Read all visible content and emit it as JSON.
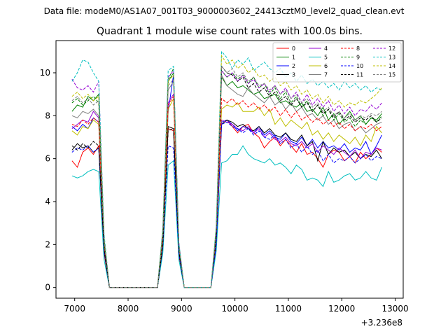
{
  "chart_data": {
    "type": "line",
    "suptitle": "Data file: modeM0/AS1A07_001T03_9000003602_24413cztM0_level2_quad_clean.evt",
    "title": "Quadrant 1 module wise count rates with 100.0s bins.",
    "xlabel": "",
    "ylabel": "",
    "x_offset_label": "+3.236e8",
    "xlim": [
      6650,
      13150
    ],
    "ylim": [
      -0.5,
      11.5
    ],
    "xticks": [
      7000,
      8000,
      9000,
      10000,
      11000,
      12000,
      13000
    ],
    "xtick_labels": [
      "7000",
      "8000",
      "9000",
      "10000",
      "11000",
      "12000",
      "13000"
    ],
    "yticks": [
      0,
      2,
      4,
      6,
      8,
      10
    ],
    "ytick_labels": [
      "0",
      "2",
      "4",
      "6",
      "8",
      "10"
    ],
    "legend_position": "top-right",
    "x": [
      6950,
      7050,
      7150,
      7250,
      7350,
      7450,
      7550,
      7650,
      7750,
      7850,
      7950,
      8050,
      8150,
      8250,
      8350,
      8450,
      8550,
      8650,
      8750,
      8850,
      8950,
      9050,
      9150,
      9250,
      9350,
      9450,
      9550,
      9650,
      9750,
      9850,
      9950,
      10050,
      10150,
      10250,
      10350,
      10450,
      10550,
      10650,
      10750,
      10850,
      10950,
      11050,
      11150,
      11250,
      11350,
      11450,
      11550,
      11650,
      11750,
      11850,
      11950,
      12050,
      12150,
      12250,
      12350,
      12450,
      12550,
      12650,
      12750
    ],
    "series": [
      {
        "name": "0",
        "color": "#ff0000",
        "dash": "solid",
        "values": [
          5.9,
          5.6,
          6.3,
          6.5,
          6.2,
          6.6,
          1.6,
          0,
          0,
          0,
          0,
          0,
          0,
          0,
          0,
          0,
          0,
          2.0,
          7.4,
          7.3,
          1.5,
          0,
          0,
          0,
          0,
          0,
          0,
          2.0,
          7.6,
          7.8,
          7.5,
          7.2,
          7.5,
          7.6,
          7.2,
          7.0,
          6.5,
          6.8,
          7.0,
          6.6,
          6.9,
          6.6,
          6.3,
          6.7,
          6.2,
          6.3,
          6.0,
          5.6,
          6.2,
          6.4,
          6.3,
          5.9,
          6.1,
          5.8,
          6.3,
          6.0,
          6.2,
          6.5,
          6.3
        ]
      },
      {
        "name": "1",
        "color": "#008000",
        "dash": "solid",
        "values": [
          8.2,
          8.5,
          8.4,
          8.9,
          8.7,
          9.0,
          2.2,
          0,
          0,
          0,
          0,
          0,
          0,
          0,
          0,
          0,
          0,
          2.6,
          9.6,
          10.0,
          2.0,
          0,
          0,
          0,
          0,
          0,
          0,
          2.7,
          9.8,
          9.4,
          9.6,
          9.3,
          9.4,
          9.2,
          9.0,
          9.1,
          8.8,
          8.9,
          9.0,
          8.6,
          8.7,
          8.5,
          8.4,
          8.6,
          8.2,
          8.3,
          8.0,
          8.4,
          7.8,
          8.1,
          7.6,
          7.9,
          8.2,
          7.8,
          8.0,
          7.6,
          7.9,
          7.8,
          8.1
        ]
      },
      {
        "name": "2",
        "color": "#0000ff",
        "dash": "solid",
        "values": [
          7.5,
          7.3,
          7.6,
          7.4,
          7.9,
          7.7,
          1.9,
          0,
          0,
          0,
          0,
          0,
          0,
          0,
          0,
          0,
          0,
          2.2,
          8.2,
          9.9,
          1.9,
          0,
          0,
          0,
          0,
          0,
          0,
          2.3,
          7.7,
          7.8,
          7.6,
          7.3,
          7.5,
          7.4,
          7.2,
          7.5,
          7.1,
          7.3,
          7.0,
          6.9,
          7.2,
          6.8,
          6.7,
          7.0,
          6.6,
          6.9,
          6.5,
          6.8,
          6.5,
          6.6,
          6.4,
          6.7,
          6.3,
          6.5,
          6.4,
          6.8,
          6.2,
          6.6,
          7.1
        ]
      },
      {
        "name": "3",
        "color": "#000000",
        "dash": "solid",
        "values": [
          6.4,
          6.7,
          6.5,
          6.6,
          6.3,
          6.5,
          1.7,
          0,
          0,
          0,
          0,
          0,
          0,
          0,
          0,
          0,
          0,
          1.9,
          7.5,
          7.4,
          1.6,
          0,
          0,
          0,
          0,
          0,
          0,
          2.0,
          7.6,
          7.8,
          7.7,
          7.5,
          7.6,
          7.4,
          7.3,
          7.5,
          7.2,
          7.4,
          7.1,
          7.0,
          7.2,
          6.9,
          6.8,
          7.1,
          6.6,
          6.8,
          5.9,
          6.8,
          6.2,
          6.5,
          6.3,
          6.4,
          6.1,
          6.3,
          6.0,
          6.2,
          6.1,
          6.4,
          6.0
        ]
      },
      {
        "name": "4",
        "color": "#9400d3",
        "dash": "solid",
        "values": [
          7.4,
          7.6,
          7.8,
          7.7,
          8.2,
          7.9,
          2.0,
          0,
          0,
          0,
          0,
          0,
          0,
          0,
          0,
          0,
          0,
          2.3,
          8.6,
          9.0,
          1.9,
          0,
          0,
          0,
          0,
          0,
          0,
          2.4,
          7.8,
          7.7,
          7.6,
          7.4,
          7.3,
          7.5,
          7.2,
          7.4,
          7.0,
          7.2,
          6.9,
          6.8,
          7.0,
          6.7,
          6.6,
          6.8,
          6.5,
          6.7,
          6.3,
          6.6,
          6.4,
          6.2,
          6.5,
          6.3,
          6.1,
          6.4,
          6.0,
          6.3,
          6.2,
          6.5,
          6.4
        ]
      },
      {
        "name": "5",
        "color": "#00bfbf",
        "dash": "solid",
        "values": [
          5.2,
          5.1,
          5.2,
          5.4,
          5.5,
          5.4,
          1.3,
          0,
          0,
          0,
          0,
          0,
          0,
          0,
          0,
          0,
          0,
          1.6,
          5.7,
          5.9,
          1.3,
          0,
          0,
          0,
          0,
          0,
          0,
          1.7,
          5.8,
          5.9,
          6.2,
          6.2,
          6.6,
          6.2,
          6.0,
          5.9,
          5.8,
          6.0,
          5.7,
          5.8,
          5.6,
          5.3,
          5.7,
          5.5,
          5.0,
          5.1,
          5.0,
          4.7,
          5.4,
          4.9,
          5.0,
          5.2,
          5.3,
          5.0,
          5.1,
          5.4,
          5.1,
          5.0,
          5.6
        ]
      },
      {
        "name": "6",
        "color": "#bfbf00",
        "dash": "solid",
        "values": [
          7.3,
          7.1,
          7.5,
          7.4,
          7.8,
          7.6,
          2.0,
          0,
          0,
          0,
          0,
          0,
          0,
          0,
          0,
          0,
          0,
          2.2,
          8.3,
          8.8,
          1.9,
          0,
          0,
          0,
          0,
          0,
          0,
          2.4,
          8.3,
          8.5,
          8.4,
          8.6,
          8.2,
          8.2,
          8.2,
          8.4,
          8.0,
          8.3,
          7.6,
          7.9,
          7.5,
          7.8,
          7.6,
          7.4,
          7.7,
          7.1,
          7.3,
          6.9,
          7.2,
          6.8,
          7.1,
          6.9,
          6.7,
          7.0,
          6.6,
          7.1,
          6.8,
          7.5,
          7.2
        ]
      },
      {
        "name": "7",
        "color": "#808080",
        "dash": "solid",
        "values": [
          8.0,
          7.9,
          8.2,
          8.1,
          8.3,
          8.0,
          2.1,
          0,
          0,
          0,
          0,
          0,
          0,
          0,
          0,
          0,
          0,
          2.4,
          9.2,
          9.6,
          2.0,
          0,
          0,
          0,
          0,
          0,
          0,
          2.6,
          9.9,
          9.4,
          9.2,
          9.0,
          8.9,
          9.3,
          9.0,
          8.8,
          8.6,
          8.9,
          8.5,
          8.7,
          8.3,
          8.6,
          8.2,
          8.4,
          8.0,
          8.1,
          7.8,
          8.0,
          7.6,
          7.8,
          7.4,
          7.6,
          7.7,
          7.3,
          7.5,
          7.2,
          7.4,
          7.6,
          7.7
        ]
      },
      {
        "name": "8",
        "color": "#ff0000",
        "dash": "dashed",
        "values": [
          7.6,
          7.5,
          7.8,
          7.6,
          7.9,
          7.7,
          2.0,
          0,
          0,
          0,
          0,
          0,
          0,
          0,
          0,
          0,
          0,
          2.3,
          8.5,
          8.9,
          1.9,
          0,
          0,
          0,
          0,
          0,
          0,
          2.4,
          8.8,
          8.6,
          8.8,
          8.5,
          8.7,
          8.4,
          8.6,
          8.3,
          8.5,
          8.2,
          8.4,
          8.0,
          8.3,
          7.9,
          8.2,
          7.8,
          8.0,
          7.7,
          7.9,
          7.6,
          7.8,
          7.5,
          7.7,
          7.4,
          7.6,
          7.3,
          7.5,
          7.4,
          7.6,
          7.3,
          7.5
        ]
      },
      {
        "name": "9",
        "color": "#008000",
        "dash": "dashed",
        "values": [
          8.6,
          8.8,
          8.5,
          8.7,
          8.9,
          8.6,
          2.2,
          0,
          0,
          0,
          0,
          0,
          0,
          0,
          0,
          0,
          0,
          2.6,
          9.7,
          10.2,
          2.0,
          0,
          0,
          0,
          0,
          0,
          0,
          2.7,
          10.1,
          9.8,
          10.0,
          9.7,
          9.9,
          9.5,
          9.8,
          9.3,
          9.5,
          9.0,
          9.3,
          8.8,
          9.1,
          8.6,
          8.9,
          8.4,
          8.7,
          8.2,
          8.5,
          8.0,
          8.3,
          7.8,
          8.1,
          7.7,
          7.9,
          7.5,
          7.8,
          7.6,
          7.9,
          7.7,
          8.0
        ]
      },
      {
        "name": "10",
        "color": "#0000ff",
        "dash": "dashed",
        "values": [
          6.3,
          6.5,
          6.4,
          6.6,
          6.3,
          6.5,
          1.7,
          0,
          0,
          0,
          0,
          0,
          0,
          0,
          0,
          0,
          0,
          1.9,
          6.6,
          6.5,
          1.6,
          0,
          0,
          0,
          0,
          0,
          0,
          2.0,
          7.6,
          7.7,
          7.5,
          7.4,
          7.2,
          7.4,
          7.1,
          7.3,
          7.0,
          6.9,
          7.1,
          6.7,
          6.9,
          6.5,
          6.7,
          6.3,
          6.6,
          6.2,
          6.4,
          5.9,
          6.2,
          5.8,
          6.0,
          5.9,
          6.1,
          5.8,
          6.0,
          6.2,
          5.9,
          6.1,
          6.0
        ]
      },
      {
        "name": "11",
        "color": "#000000",
        "dash": "dashed",
        "values": [
          6.6,
          6.4,
          6.7,
          6.5,
          6.8,
          6.6,
          1.8,
          0,
          0,
          0,
          0,
          0,
          0,
          0,
          0,
          0,
          0,
          2.0,
          7.3,
          7.4,
          1.7,
          0,
          0,
          0,
          0,
          0,
          0,
          2.4,
          10.3,
          10.0,
          9.9,
          9.6,
          9.8,
          9.3,
          9.5,
          9.1,
          9.3,
          8.9,
          9.1,
          8.7,
          8.9,
          8.5,
          8.8,
          8.4,
          8.6,
          8.2,
          8.5,
          8.1,
          8.3,
          7.9,
          8.2,
          7.8,
          8.0,
          7.7,
          7.9,
          7.8,
          8.0,
          7.7,
          7.9
        ]
      },
      {
        "name": "12",
        "color": "#9400d3",
        "dash": "dashed",
        "values": [
          9.7,
          9.3,
          9.2,
          9.4,
          9.1,
          9.6,
          2.4,
          0,
          0,
          0,
          0,
          0,
          0,
          0,
          0,
          0,
          0,
          2.7,
          9.8,
          10.1,
          2.1,
          0,
          0,
          0,
          0,
          0,
          0,
          2.8,
          10.1,
          9.8,
          10.0,
          9.6,
          9.9,
          9.5,
          9.7,
          9.3,
          9.5,
          9.1,
          9.4,
          9.0,
          9.3,
          8.8,
          9.1,
          8.6,
          9.0,
          8.5,
          8.8,
          8.4,
          8.7,
          8.2,
          8.5,
          8.1,
          8.4,
          8.0,
          8.3,
          8.2,
          8.5,
          8.3,
          8.6
        ]
      },
      {
        "name": "13",
        "color": "#00bfbf",
        "dash": "dashed",
        "values": [
          9.6,
          10.0,
          10.6,
          10.5,
          10.0,
          9.6,
          2.5,
          0,
          0,
          0,
          0,
          0,
          0,
          0,
          0,
          0,
          0,
          2.8,
          10.1,
          10.3,
          2.1,
          0,
          0,
          0,
          0,
          0,
          0,
          2.9,
          11.0,
          10.7,
          10.2,
          10.6,
          10.4,
          10.7,
          10.1,
          10.3,
          10.5,
          10.2,
          10.0,
          10.2,
          9.8,
          10.0,
          9.6,
          9.9,
          9.5,
          9.7,
          9.4,
          9.6,
          9.3,
          9.5,
          9.2,
          9.6,
          9.3,
          9.5,
          9.2,
          9.4,
          9.1,
          9.3,
          9.2
        ]
      },
      {
        "name": "14",
        "color": "#bfbf00",
        "dash": "dashed",
        "values": [
          8.9,
          9.1,
          8.8,
          9.0,
          8.7,
          8.9,
          2.3,
          0,
          0,
          0,
          0,
          0,
          0,
          0,
          0,
          0,
          0,
          2.6,
          9.6,
          9.9,
          2.0,
          0,
          0,
          0,
          0,
          0,
          0,
          2.8,
          10.8,
          10.4,
          10.6,
          10.2,
          10.4,
          10.0,
          10.2,
          9.8,
          9.9,
          9.6,
          9.8,
          9.4,
          9.6,
          9.2,
          9.4,
          9.0,
          9.2,
          8.8,
          9.0,
          8.6,
          8.9,
          8.5,
          8.7,
          8.4,
          8.6,
          8.5,
          8.7,
          8.6,
          8.8,
          9.0,
          9.3
        ]
      },
      {
        "name": "15",
        "color": "#808080",
        "dash": "dashed",
        "values": [
          8.7,
          8.9,
          8.6,
          8.8,
          8.5,
          8.7,
          2.2,
          0,
          0,
          0,
          0,
          0,
          0,
          0,
          0,
          0,
          0,
          2.5,
          9.4,
          9.7,
          2.0,
          0,
          0,
          0,
          0,
          0,
          0,
          2.7,
          10.3,
          10.0,
          10.2,
          9.8,
          10.0,
          9.6,
          9.8,
          9.4,
          9.5,
          9.2,
          9.4,
          9.0,
          9.2,
          8.8,
          9.0,
          8.6,
          8.8,
          8.4,
          8.6,
          8.2,
          8.4,
          8.0,
          8.2,
          7.9,
          8.1,
          7.8,
          8.0,
          7.9,
          8.1,
          8.0,
          8.2
        ]
      }
    ]
  }
}
